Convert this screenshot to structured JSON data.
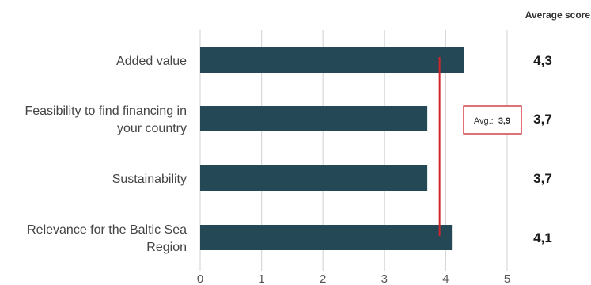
{
  "chart_data": {
    "type": "bar",
    "orientation": "horizontal",
    "categories": [
      [
        "Added value"
      ],
      [
        "Feasibility to find financing in",
        "your country"
      ],
      [
        "Sustainability"
      ],
      [
        "Relevance for the Baltic Sea",
        "Region"
      ]
    ],
    "values": [
      4.3,
      3.7,
      3.7,
      4.1
    ],
    "score_labels": [
      "4,3",
      "3,7",
      "3,7",
      "4,1"
    ],
    "score_header": "Average score",
    "xlim": [
      0,
      5
    ],
    "xticks": [
      0,
      1,
      2,
      3,
      4,
      5
    ],
    "average": {
      "value": 3.9,
      "prefix": "Avg.:",
      "label": "3,9"
    },
    "grid": true,
    "legend": "none",
    "colors": {
      "bar": "#244856",
      "average_line": "#d0252b",
      "grid": "#d8d8d8"
    }
  }
}
